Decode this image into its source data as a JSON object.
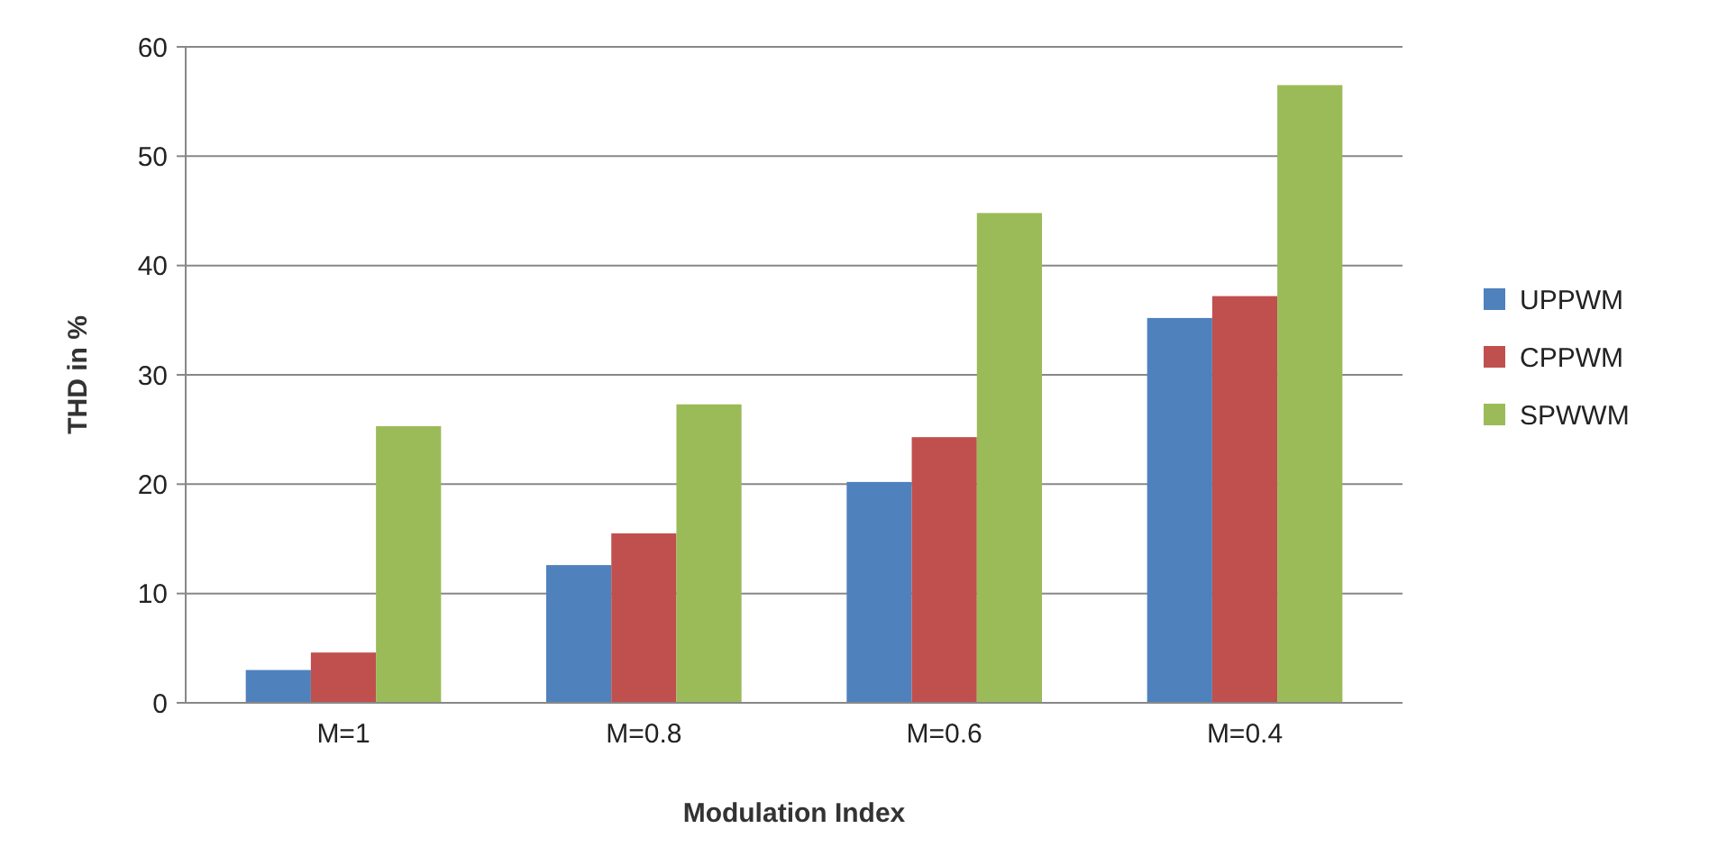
{
  "chart_data": {
    "type": "bar",
    "xlabel": "Modulation Index",
    "ylabel": "THD in %",
    "categories": [
      "M=1",
      "M=0.8",
      "M=0.6",
      "M=0.4"
    ],
    "series": [
      {
        "name": "UPPWM",
        "color": "#4f81bd",
        "values": [
          3.0,
          12.6,
          20.2,
          35.2
        ]
      },
      {
        "name": "CPPWM",
        "color": "#c0504d",
        "values": [
          4.6,
          15.5,
          24.3,
          37.2
        ]
      },
      {
        "name": "SPWWM",
        "color": "#9bbb59",
        "values": [
          25.3,
          27.3,
          44.8,
          56.5
        ]
      }
    ],
    "ylim": [
      0,
      60
    ],
    "yticks": [
      0,
      10,
      20,
      30,
      40,
      50,
      60
    ],
    "grid": "y",
    "legend": "right"
  }
}
